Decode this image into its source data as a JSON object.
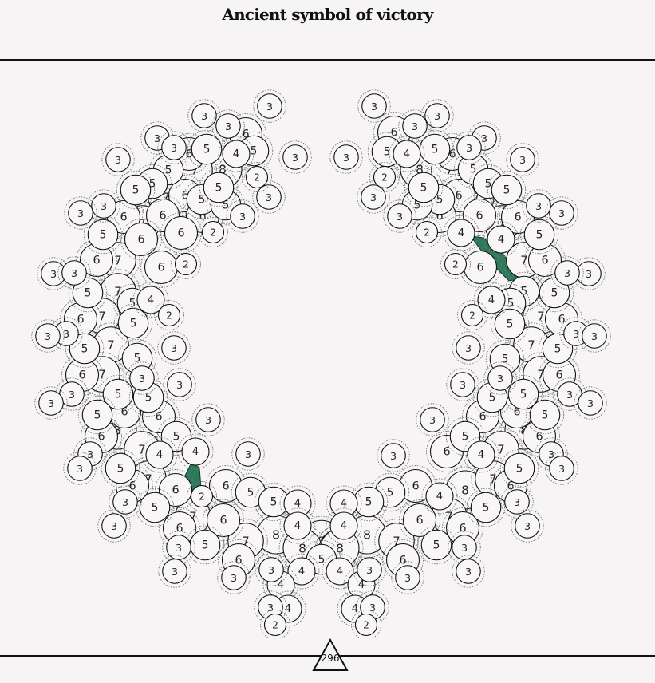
{
  "title": "Ancient symbol of victory",
  "counter": "296",
  "colors": {
    "background": "#f6f4f5",
    "cell_fill": "#f8f6f7",
    "ribbon": "#2d7a5a"
  },
  "cells": [
    [
      338,
      133,
      3
    ],
    [
      256,
      145,
      3
    ],
    [
      286,
      158,
      3
    ],
    [
      308,
      168,
      6
    ],
    [
      197,
      173,
      3
    ],
    [
      218,
      185,
      3
    ],
    [
      237,
      193,
      6
    ],
    [
      259,
      187,
      5
    ],
    [
      296,
      193,
      4
    ],
    [
      318,
      189,
      5
    ],
    [
      148,
      200,
      3
    ],
    [
      370,
      197,
      3
    ],
    [
      211,
      213,
      5
    ],
    [
      244,
      213,
      7
    ],
    [
      279,
      212,
      8
    ],
    [
      322,
      222,
      2
    ],
    [
      191,
      230,
      5
    ],
    [
      170,
      238,
      5
    ],
    [
      208,
      247,
      7
    ],
    [
      232,
      245,
      6
    ],
    [
      253,
      250,
      5
    ],
    [
      283,
      257,
      5
    ],
    [
      274,
      235,
      5
    ],
    [
      337,
      247,
      3
    ],
    [
      130,
      258,
      3
    ],
    [
      101,
      267,
      3
    ],
    [
      155,
      272,
      6
    ],
    [
      178,
      280,
      7
    ],
    [
      204,
      270,
      6
    ],
    [
      254,
      271,
      6
    ],
    [
      304,
      271,
      3
    ],
    [
      129,
      294,
      5
    ],
    [
      227,
      292,
      6
    ],
    [
      267,
      291,
      2
    ],
    [
      177,
      300,
      6
    ],
    [
      121,
      326,
      6
    ],
    [
      148,
      326,
      7
    ],
    [
      202,
      335,
      6
    ],
    [
      233,
      331,
      2
    ],
    [
      67,
      343,
      3
    ],
    [
      93,
      342,
      3
    ],
    [
      110,
      367,
      5
    ],
    [
      148,
      365,
      7
    ],
    [
      166,
      380,
      5
    ],
    [
      189,
      376,
      4
    ],
    [
      101,
      400,
      6
    ],
    [
      128,
      396,
      7
    ],
    [
      167,
      405,
      5
    ],
    [
      212,
      395,
      2
    ],
    [
      83,
      418,
      3
    ],
    [
      60,
      421,
      3
    ],
    [
      106,
      437,
      5
    ],
    [
      139,
      432,
      7
    ],
    [
      172,
      449,
      5
    ],
    [
      218,
      436,
      3
    ],
    [
      103,
      470,
      6
    ],
    [
      128,
      469,
      7
    ],
    [
      178,
      474,
      3
    ],
    [
      225,
      482,
      3
    ],
    [
      90,
      494,
      3
    ],
    [
      148,
      494,
      5
    ],
    [
      186,
      498,
      5
    ],
    [
      64,
      505,
      3
    ],
    [
      122,
      520,
      5
    ],
    [
      156,
      516,
      6
    ],
    [
      199,
      522,
      6
    ],
    [
      261,
      526,
      3
    ],
    [
      127,
      547,
      6
    ],
    [
      147,
      539,
      8
    ],
    [
      221,
      547,
      5
    ],
    [
      113,
      569,
      3
    ],
    [
      178,
      563,
      7
    ],
    [
      200,
      570,
      4
    ],
    [
      245,
      566,
      4
    ],
    [
      311,
      569,
      3
    ],
    [
      100,
      587,
      3
    ],
    [
      151,
      587,
      5
    ],
    [
      186,
      600,
      7
    ],
    [
      166,
      609,
      6
    ],
    [
      220,
      614,
      6
    ],
    [
      253,
      622,
      2
    ],
    [
      283,
      609,
      6
    ],
    [
      314,
      617,
      5
    ],
    [
      157,
      629,
      3
    ],
    [
      194,
      636,
      5
    ],
    [
      343,
      629,
      5
    ],
    [
      373,
      631,
      4
    ],
    [
      242,
      647,
      7
    ],
    [
      280,
      652,
      6
    ],
    [
      143,
      659,
      3
    ],
    [
      225,
      662,
      6
    ],
    [
      257,
      683,
      5
    ],
    [
      224,
      686,
      3
    ],
    [
      308,
      678,
      7
    ],
    [
      346,
      670,
      8
    ],
    [
      373,
      659,
      4
    ],
    [
      379,
      687,
      8
    ],
    [
      403,
      678,
      9
    ],
    [
      424,
      688,
      8
    ],
    [
      403,
      701,
      5
    ],
    [
      299,
      702,
      6
    ],
    [
      219,
      716,
      3
    ],
    [
      293,
      724,
      3
    ],
    [
      340,
      714,
      3
    ],
    [
      378,
      716,
      4
    ],
    [
      352,
      733,
      4
    ],
    [
      339,
      761,
      3
    ],
    [
      361,
      763,
      4
    ],
    [
      345,
      783,
      2
    ],
    [
      469,
      133,
      3
    ],
    [
      548,
      145,
      3
    ],
    [
      520,
      158,
      3
    ],
    [
      494,
      166,
      6
    ],
    [
      607,
      173,
      3
    ],
    [
      588,
      185,
      3
    ],
    [
      567,
      193,
      6
    ],
    [
      545,
      187,
      5
    ],
    [
      510,
      193,
      4
    ],
    [
      485,
      190,
      5
    ],
    [
      655,
      200,
      3
    ],
    [
      434,
      197,
      3
    ],
    [
      593,
      212,
      5
    ],
    [
      563,
      213,
      7
    ],
    [
      526,
      212,
      8
    ],
    [
      482,
      222,
      2
    ],
    [
      612,
      230,
      5
    ],
    [
      635,
      238,
      5
    ],
    [
      597,
      247,
      7
    ],
    [
      575,
      245,
      6
    ],
    [
      551,
      250,
      5
    ],
    [
      523,
      257,
      5
    ],
    [
      531,
      235,
      5
    ],
    [
      468,
      247,
      3
    ],
    [
      675,
      258,
      3
    ],
    [
      704,
      267,
      3
    ],
    [
      649,
      272,
      6
    ],
    [
      629,
      280,
      7
    ],
    [
      601,
      270,
      6
    ],
    [
      551,
      271,
      6
    ],
    [
      501,
      271,
      3
    ],
    [
      676,
      294,
      5
    ],
    [
      578,
      292,
      4
    ],
    [
      535,
      291,
      2
    ],
    [
      628,
      300,
      4
    ],
    [
      683,
      326,
      6
    ],
    [
      657,
      326,
      7
    ],
    [
      602,
      335,
      6
    ],
    [
      571,
      331,
      2
    ],
    [
      738,
      343,
      3
    ],
    [
      711,
      342,
      3
    ],
    [
      695,
      367,
      5
    ],
    [
      657,
      365,
      5
    ],
    [
      640,
      380,
      5
    ],
    [
      616,
      376,
      4
    ],
    [
      704,
      400,
      6
    ],
    [
      678,
      396,
      7
    ],
    [
      639,
      406,
      5
    ],
    [
      592,
      395,
      2
    ],
    [
      722,
      418,
      3
    ],
    [
      745,
      421,
      3
    ],
    [
      699,
      437,
      5
    ],
    [
      666,
      432,
      7
    ],
    [
      633,
      450,
      5
    ],
    [
      587,
      436,
      3
    ],
    [
      701,
      470,
      6
    ],
    [
      678,
      469,
      7
    ],
    [
      627,
      474,
      3
    ],
    [
      580,
      482,
      3
    ],
    [
      714,
      494,
      3
    ],
    [
      656,
      494,
      5
    ],
    [
      617,
      498,
      5
    ],
    [
      740,
      505,
      3
    ],
    [
      683,
      520,
      5
    ],
    [
      648,
      516,
      6
    ],
    [
      605,
      522,
      6
    ],
    [
      542,
      526,
      3
    ],
    [
      676,
      547,
      6
    ],
    [
      657,
      539,
      8
    ],
    [
      583,
      547,
      5
    ],
    [
      691,
      569,
      3
    ],
    [
      628,
      563,
      7
    ],
    [
      603,
      570,
      4
    ],
    [
      560,
      566,
      6
    ],
    [
      493,
      571,
      3
    ],
    [
      704,
      587,
      3
    ],
    [
      651,
      587,
      5
    ],
    [
      618,
      600,
      7
    ],
    [
      640,
      609,
      6
    ],
    [
      583,
      614,
      8
    ],
    [
      551,
      622,
      4
    ],
    [
      521,
      609,
      6
    ],
    [
      489,
      617,
      5
    ],
    [
      648,
      629,
      3
    ],
    [
      609,
      636,
      5
    ],
    [
      462,
      629,
      5
    ],
    [
      431,
      631,
      4
    ],
    [
      563,
      647,
      7
    ],
    [
      526,
      652,
      6
    ],
    [
      661,
      659,
      3
    ],
    [
      580,
      662,
      6
    ],
    [
      547,
      683,
      5
    ],
    [
      582,
      686,
      3
    ],
    [
      497,
      678,
      7
    ],
    [
      460,
      670,
      8
    ],
    [
      431,
      659,
      4
    ],
    [
      426,
      687,
      8
    ],
    [
      505,
      702,
      6
    ],
    [
      587,
      716,
      3
    ],
    [
      511,
      724,
      3
    ],
    [
      463,
      714,
      3
    ],
    [
      426,
      716,
      4
    ],
    [
      453,
      733,
      4
    ],
    [
      467,
      761,
      3
    ],
    [
      445,
      763,
      4
    ],
    [
      459,
      783,
      2
    ]
  ]
}
